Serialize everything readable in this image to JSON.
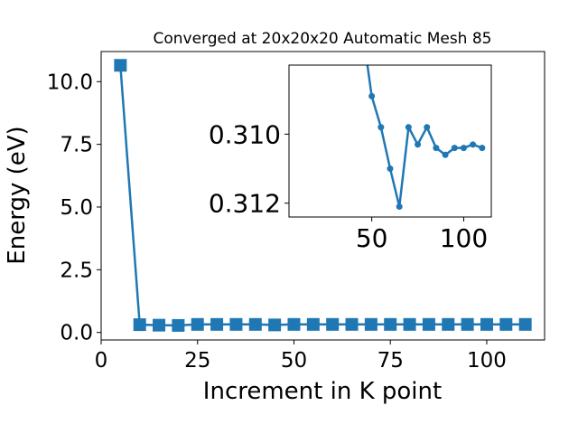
{
  "chart_data": [
    {
      "type": "line",
      "title": "Converged at 20x20x20 Automatic Mesh 85",
      "xlabel": "Increment in K point",
      "ylabel": "Energy (eV)",
      "xlim": [
        0,
        115
      ],
      "ylim": [
        -0.3,
        11.2
      ],
      "x_ticks": [
        0,
        25,
        50,
        75,
        100
      ],
      "x_tick_labels": [
        "0",
        "25",
        "50",
        "75",
        "100"
      ],
      "y_ticks": [
        0.0,
        2.5,
        5.0,
        7.5,
        10.0
      ],
      "y_tick_labels": [
        "0.0",
        "2.5",
        "5.0",
        "7.5",
        "10.0"
      ],
      "grid": false,
      "marker": "square",
      "color": "#1f77b4",
      "series": [
        {
          "x": [
            5,
            10,
            15,
            20,
            25,
            30,
            35,
            40,
            45,
            50,
            55,
            60,
            65,
            70,
            75,
            80,
            85,
            90,
            95,
            100,
            105,
            110
          ],
          "y": [
            10.65,
            0.31,
            0.29,
            0.28,
            0.32,
            0.32,
            0.32,
            0.32,
            0.3,
            0.32,
            0.32,
            0.32,
            0.32,
            0.32,
            0.32,
            0.32,
            0.32,
            0.32,
            0.32,
            0.32,
            0.32,
            0.32
          ]
        }
      ]
    },
    {
      "type": "line",
      "inset": true,
      "xlim": [
        5,
        115
      ],
      "ylim": [
        0.308,
        0.3124
      ],
      "y_inverted": true,
      "x_ticks": [
        50,
        100
      ],
      "x_tick_labels": [
        "50",
        "100"
      ],
      "y_ticks": [
        0.31,
        0.312
      ],
      "y_tick_labels": [
        "0.310",
        "0.312"
      ],
      "marker": "circle",
      "color": "#1f77b4",
      "series": [
        {
          "x": [
            45,
            50,
            55,
            60,
            65,
            70,
            75,
            80,
            85,
            90,
            95,
            100,
            105,
            110
          ],
          "y": [
            0.307,
            0.3089,
            0.3098,
            0.311,
            0.3121,
            0.3098,
            0.3103,
            0.3098,
            0.3104,
            0.3106,
            0.3104,
            0.3104,
            0.3103,
            0.3104
          ]
        }
      ]
    }
  ]
}
